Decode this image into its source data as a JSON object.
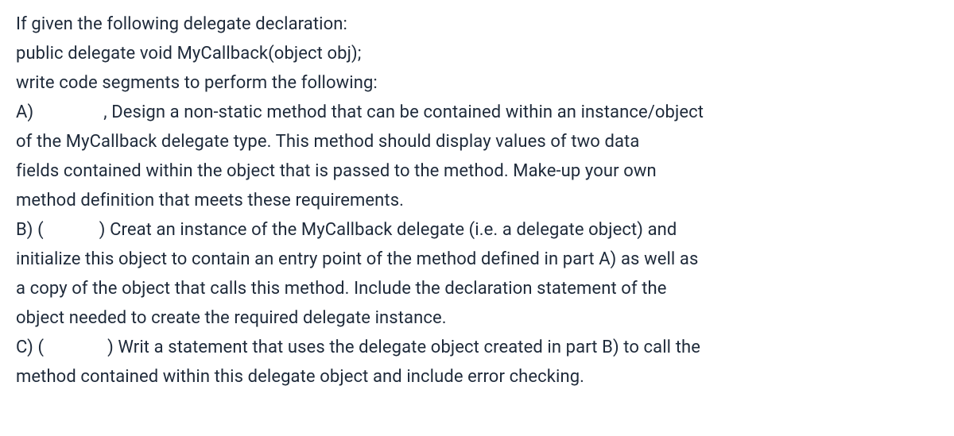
{
  "text_color": "#1e2a3a",
  "lines": {
    "l1": "If given the following delegate declaration:",
    "l2": "public delegate void MyCallback(object obj);",
    "l3": "write code segments to perform the following:",
    "l4a": "A)",
    "l4b": ", Design a non-static method that can be contained within an instance/object",
    "l5": "of the MyCallback delegate type. This method should display values of two data",
    "l6": "fields contained within the object that is passed to the method. Make-up your own",
    "l7": "method definition that meets these requirements.",
    "l8a": "B) (",
    "l8b": ") Creat an instance of the MyCallback delegate (i.e. a delegate object) and",
    "l9": "initialize this object to contain an entry point of the method defined in part A) as well as",
    "l10": "a copy of the object that calls this method. Include the declaration statement of the",
    "l11": "object needed to create the required delegate instance.",
    "l12a": "C) (",
    "l12b": ") Writ a statement that uses the delegate object created in part B) to call the",
    "l13": "method contained within this delegate object and include error checking."
  },
  "gaps": {
    "a": "88px",
    "b": "70px",
    "c": "80px"
  }
}
